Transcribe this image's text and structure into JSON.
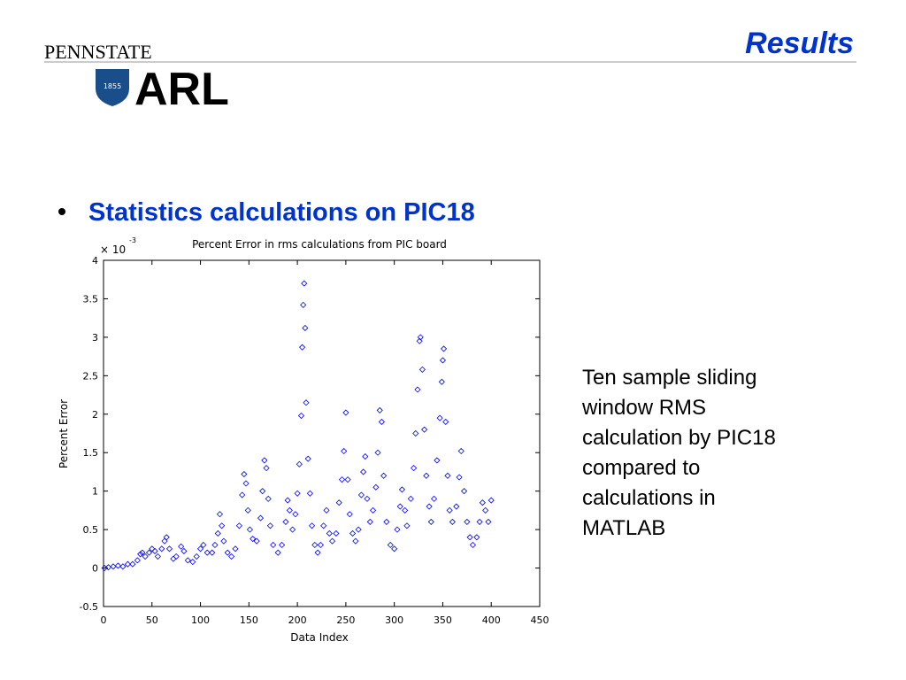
{
  "slide": {
    "title": "Results",
    "logo_top": "PENNSTATE",
    "logo_year": "1855",
    "logo_main": "ARL",
    "bullet": "Statistics calculations on PIC18",
    "side_text": [
      "Ten sample sliding",
      "window RMS",
      "calculation by PIC18",
      "compared to",
      "calculations in",
      "MATLAB"
    ]
  },
  "chart_data": {
    "type": "scatter",
    "title": "Percent Error in rms calculations from PIC board",
    "x_label": "Data Index",
    "y_label": "Percent Error",
    "y_multiplier": "× 10",
    "y_multiplier_exp": "-3",
    "color": "#0000ff",
    "marker": "diamond",
    "xlim": [
      0,
      450
    ],
    "xticks": [
      0,
      50,
      100,
      150,
      200,
      250,
      300,
      350,
      400,
      450
    ],
    "ylim": [
      -0.5,
      4
    ],
    "yticks": [
      -0.5,
      0,
      0.5,
      1,
      1.5,
      2,
      2.5,
      3,
      3.5,
      4
    ],
    "x": [
      1,
      5,
      10,
      15,
      20,
      25,
      30,
      35,
      38,
      40,
      43,
      47,
      50,
      53,
      56,
      60,
      63,
      65,
      68,
      72,
      75,
      80,
      83,
      87,
      92,
      96,
      100,
      103,
      107,
      112,
      115,
      118,
      120,
      122,
      124,
      128,
      132,
      136,
      140,
      143,
      145,
      147,
      149,
      151,
      154,
      158,
      162,
      164,
      166,
      168,
      170,
      172,
      175,
      180,
      184,
      188,
      190,
      192,
      195,
      198,
      200,
      202,
      204,
      205,
      206,
      207,
      208,
      209,
      211,
      213,
      215,
      218,
      221,
      224,
      227,
      230,
      233,
      236,
      240,
      243,
      246,
      248,
      250,
      252,
      254,
      257,
      260,
      263,
      266,
      268,
      270,
      272,
      275,
      278,
      281,
      283,
      285,
      287,
      289,
      292,
      296,
      300,
      303,
      306,
      308,
      311,
      313,
      317,
      320,
      322,
      324,
      326,
      327,
      329,
      331,
      333,
      336,
      338,
      341,
      344,
      347,
      349,
      350,
      351,
      353,
      355,
      357,
      360,
      364,
      367,
      369,
      372,
      375,
      378,
      381,
      385,
      388,
      391,
      394,
      397,
      400
    ],
    "values": [
      0,
      0.01,
      0.02,
      0.03,
      0.02,
      0.05,
      0.05,
      0.1,
      0.18,
      0.2,
      0.15,
      0.2,
      0.25,
      0.22,
      0.15,
      0.25,
      0.35,
      0.4,
      0.25,
      0.12,
      0.15,
      0.28,
      0.22,
      0.1,
      0.08,
      0.15,
      0.25,
      0.3,
      0.2,
      0.2,
      0.3,
      0.45,
      0.7,
      0.55,
      0.35,
      0.2,
      0.15,
      0.25,
      0.55,
      0.95,
      1.22,
      1.1,
      0.75,
      0.5,
      0.38,
      0.35,
      0.65,
      1.0,
      1.4,
      1.3,
      0.9,
      0.55,
      0.3,
      0.2,
      0.3,
      0.6,
      0.88,
      0.75,
      0.5,
      0.7,
      0.97,
      1.35,
      1.98,
      2.87,
      3.42,
      3.7,
      3.12,
      2.15,
      1.42,
      0.97,
      0.55,
      0.3,
      0.2,
      0.3,
      0.55,
      0.75,
      0.45,
      0.35,
      0.45,
      0.85,
      1.15,
      1.52,
      2.02,
      1.15,
      0.7,
      0.45,
      0.35,
      0.5,
      0.95,
      1.25,
      1.45,
      0.9,
      0.6,
      0.75,
      1.05,
      1.5,
      2.05,
      1.9,
      1.2,
      0.6,
      0.3,
      0.25,
      0.5,
      0.8,
      1.02,
      0.75,
      0.55,
      0.9,
      1.3,
      1.75,
      2.32,
      2.95,
      3.0,
      2.58,
      1.8,
      1.2,
      0.8,
      0.6,
      0.9,
      1.4,
      1.95,
      2.42,
      2.7,
      2.85,
      1.9,
      1.2,
      0.75,
      0.6,
      0.8,
      1.18,
      1.52,
      1.0,
      0.6,
      0.4,
      0.3,
      0.4,
      0.6,
      0.85,
      0.75,
      0.6,
      0.88
    ]
  }
}
